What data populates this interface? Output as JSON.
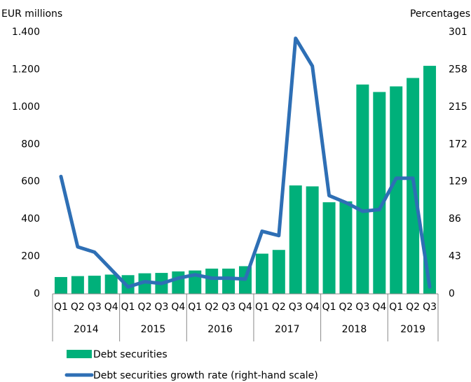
{
  "chart_data": {
    "type": "bar",
    "y_label": "EUR millions",
    "y2_label": "Percentages",
    "categories": [
      "Q1",
      "Q2",
      "Q3",
      "Q4",
      "Q1",
      "Q2",
      "Q3",
      "Q4",
      "Q1",
      "Q2",
      "Q3",
      "Q4",
      "Q1",
      "Q2",
      "Q3",
      "Q4",
      "Q1",
      "Q2",
      "Q3",
      "Q4",
      "Q1",
      "Q2",
      "Q3"
    ],
    "groups": [
      {
        "name": "2014",
        "span": 4
      },
      {
        "name": "2015",
        "span": 4
      },
      {
        "name": "2016",
        "span": 4
      },
      {
        "name": "2017",
        "span": 4
      },
      {
        "name": "2018",
        "span": 4
      },
      {
        "name": "2019",
        "span": 3
      }
    ],
    "series": [
      {
        "name": "Debt securities",
        "type": "bar",
        "color": "#00b07a",
        "values": [
          90,
          95,
          97,
          103,
          100,
          110,
          112,
          120,
          125,
          135,
          135,
          148,
          215,
          235,
          580,
          575,
          490,
          495,
          1120,
          1080,
          1110,
          1155,
          1220
        ]
      },
      {
        "name": "Debt securities growth rate (right-hand scale)",
        "type": "line",
        "axis": "y2",
        "color": "#2e6fb5",
        "values": [
          135,
          54,
          48,
          28,
          8,
          14,
          12,
          18,
          22,
          18,
          18,
          17,
          72,
          67,
          294,
          262,
          113,
          105,
          95,
          97,
          133,
          133,
          8
        ]
      }
    ],
    "ylim": [
      0,
      1400
    ],
    "yticks": [
      0,
      200,
      400,
      600,
      800,
      {
        "value": 1000,
        "label": "1.000"
      },
      {
        "value": 1200,
        "label": "1.200"
      },
      {
        "value": 1400,
        "label": "1.400"
      }
    ],
    "y2lim": [
      0,
      301
    ],
    "y2ticks": [
      0,
      43,
      86,
      129,
      172,
      215,
      258,
      301
    ],
    "legend": "bottom"
  }
}
